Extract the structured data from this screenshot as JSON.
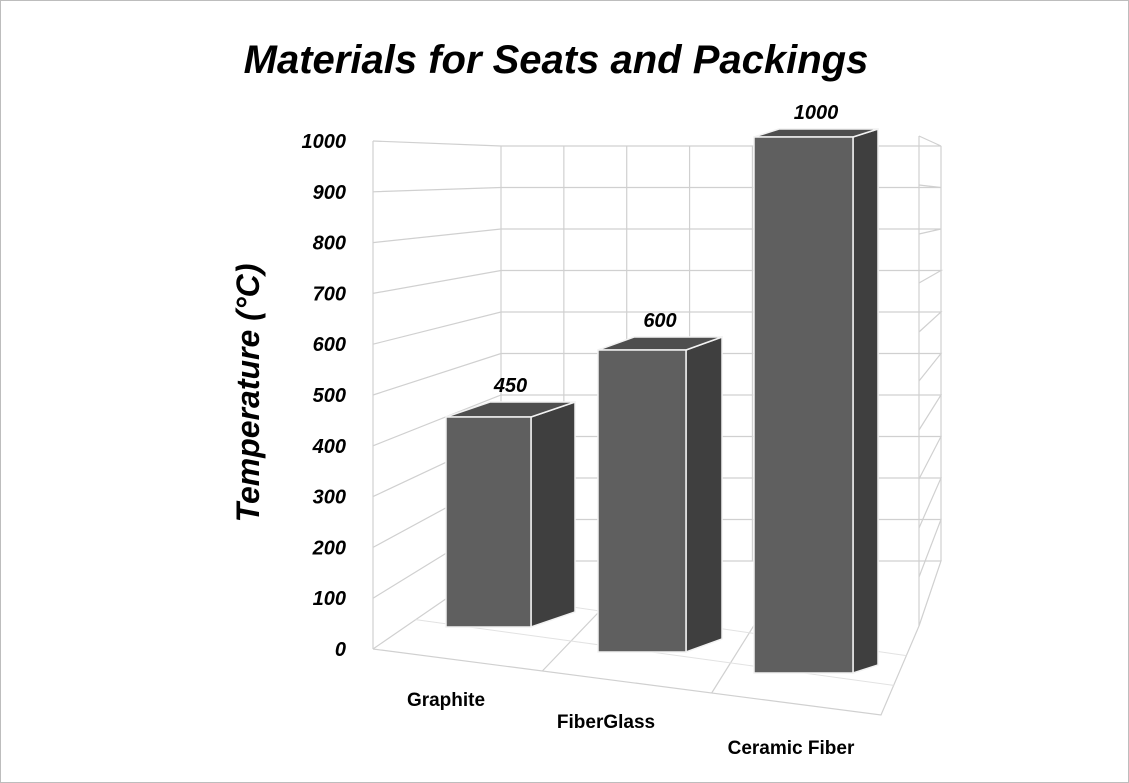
{
  "chart_data": {
    "type": "bar",
    "title": "Materials for Seats and Packings",
    "ylabel": "Temperature (°C)",
    "xlabel": "",
    "categories": [
      "Graphite",
      "FiberGlass",
      "Ceramic Fiber"
    ],
    "values": [
      450,
      600,
      1000
    ],
    "data_labels": [
      "450",
      "600",
      "1000"
    ],
    "yticks": [
      "0",
      "100",
      "200",
      "300",
      "400",
      "500",
      "600",
      "700",
      "800",
      "900",
      "1000"
    ],
    "ylim": [
      0,
      1000
    ],
    "grid": true,
    "legend": "none",
    "style": "3d-column",
    "colors": {
      "bar_front": "#5f5f5f",
      "bar_side": "#3f3f3f",
      "bar_top": "#4e4e4e",
      "grid": "#d0d0d0"
    }
  }
}
